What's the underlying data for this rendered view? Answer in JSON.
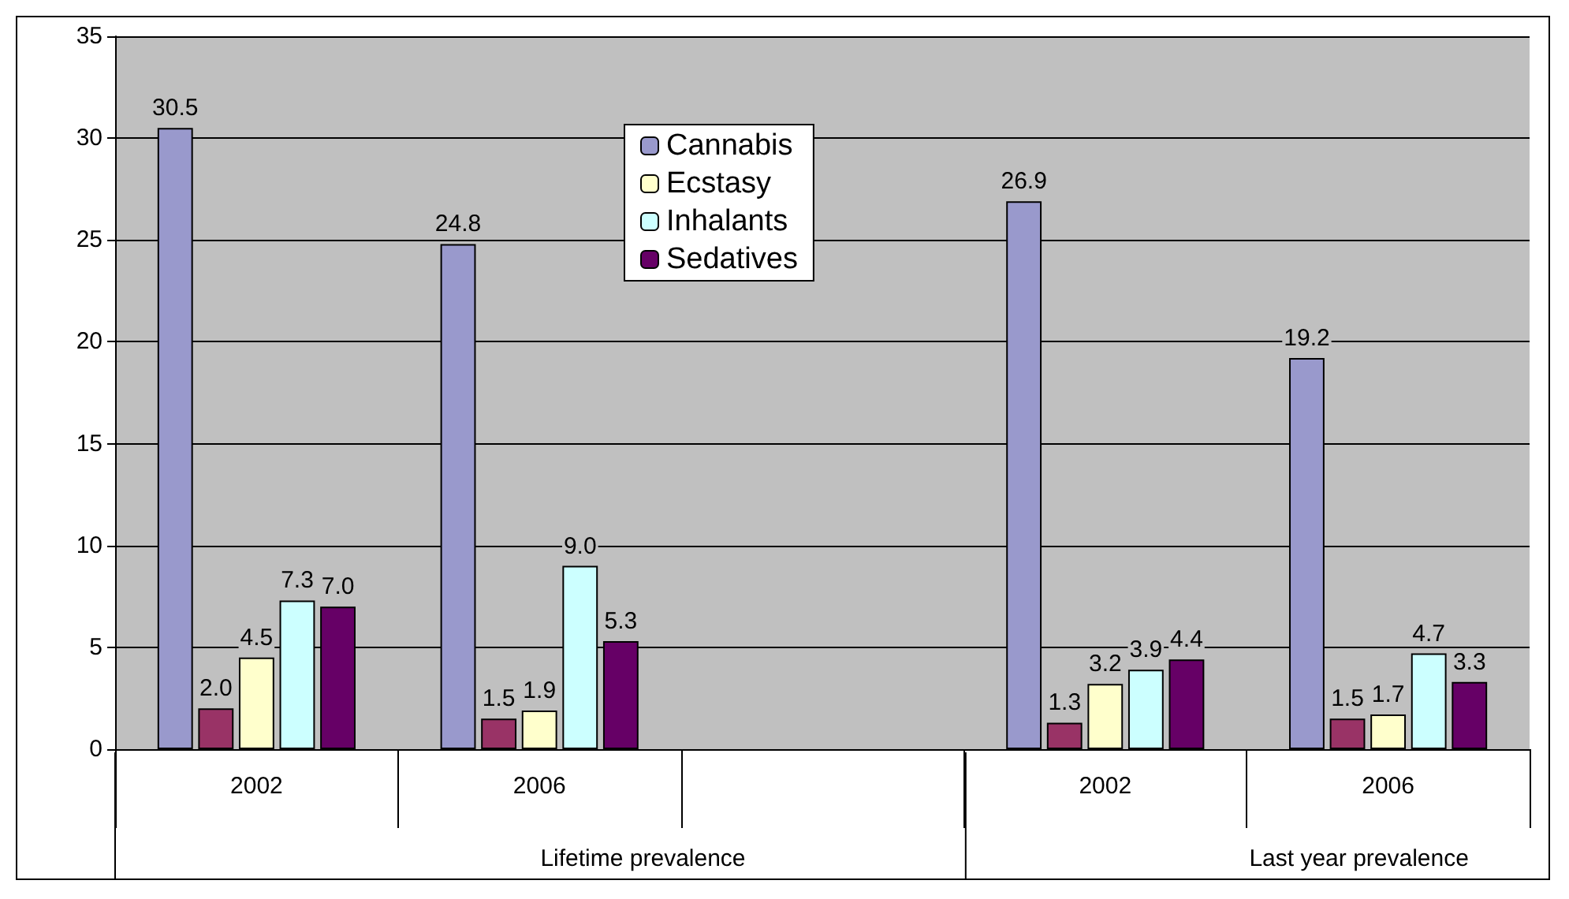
{
  "chart_data": {
    "type": "bar",
    "categories": [
      "2002",
      "2006",
      null,
      "2002",
      "2006"
    ],
    "series": [
      {
        "name": "Cannabis",
        "color": "#9999cc",
        "values": [
          30.5,
          24.8,
          null,
          26.9,
          19.2
        ],
        "value_labels": [
          "30.5",
          "24.8",
          null,
          "26.9",
          "19.2"
        ]
      },
      {
        "color": "#993366",
        "values": [
          2.0,
          1.5,
          null,
          1.3,
          1.5
        ],
        "value_labels": [
          "2.0",
          "1.5",
          null,
          "1.3",
          "1.5"
        ]
      },
      {
        "name": "Ecstasy",
        "color": "#ffffcc",
        "values": [
          4.5,
          1.9,
          null,
          3.2,
          1.7
        ],
        "value_labels": [
          "4.5",
          "1.9",
          null,
          "3.2",
          "1.7"
        ]
      },
      {
        "name": "Inhalants",
        "color": "#ccffff",
        "values": [
          7.3,
          9.0,
          null,
          3.9,
          4.7
        ],
        "value_labels": [
          "7.3",
          "9.0",
          null,
          "3.9",
          "4.7"
        ]
      },
      {
        "name": "Sedatives",
        "color": "#660066",
        "values": [
          7.0,
          5.3,
          null,
          4.4,
          3.3
        ],
        "value_labels": [
          "7.0",
          "5.3",
          null,
          "4.4",
          "3.3"
        ]
      }
    ],
    "ylim": [
      0,
      35
    ],
    "yticks": [
      0,
      5,
      10,
      15,
      20,
      25,
      30,
      35
    ],
    "grid": "y",
    "legend": "top",
    "annotations": [
      "Lifetime prevalence",
      "Last year prevalence"
    ]
  }
}
